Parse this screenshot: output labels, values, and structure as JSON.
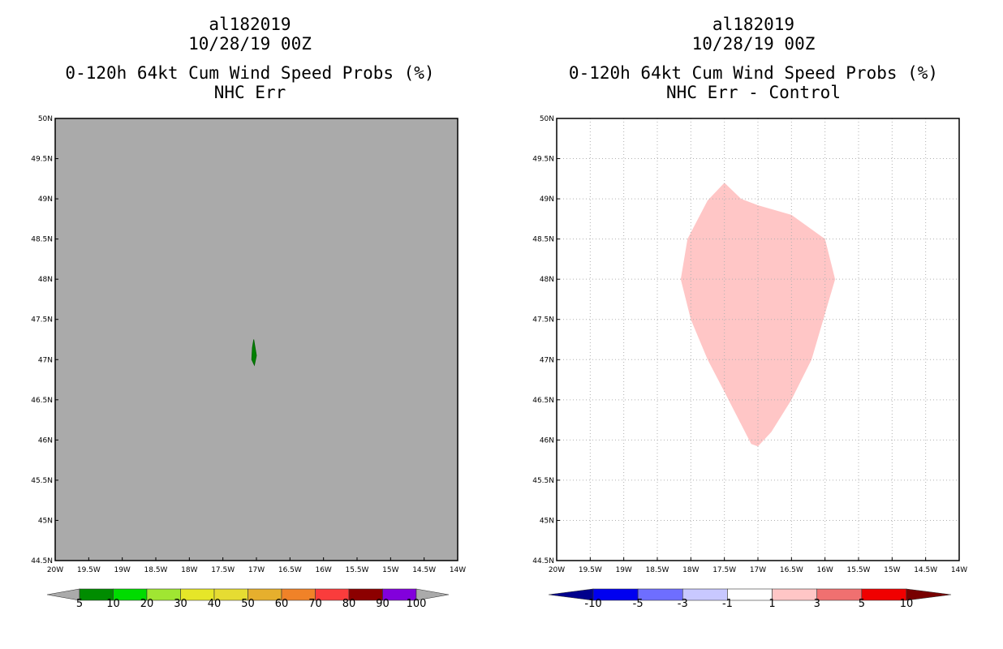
{
  "left": {
    "title_line1": "al182019",
    "title_line2": "10/28/19 00Z",
    "title_line3": "0-120h 64kt Cum Wind Speed Probs (%)",
    "title_line4": "NHC Err"
  },
  "right": {
    "title_line1": "al182019",
    "title_line2": "10/28/19 00Z",
    "title_line3": "0-120h 64kt Cum Wind Speed Probs (%)",
    "title_line4": "NHC Err - Control"
  },
  "colors": {
    "map_background_left": "#aaaaaa",
    "map_background_right": "#ffffff",
    "grid": "#b0b0b0",
    "prob_5_10": "#008000",
    "diff_1_3": "#ffc6c6"
  },
  "chart_data": [
    {
      "type": "contour-map",
      "title": "0-120h 64kt Cum Wind Speed Probs (%) NHC Err",
      "xlim": [
        -20,
        -14
      ],
      "ylim": [
        44.5,
        50
      ],
      "x_ticks": [
        "20W",
        "19.5W",
        "19W",
        "18.5W",
        "18W",
        "17.5W",
        "17W",
        "16.5W",
        "16W",
        "15.5W",
        "15W",
        "14.5W",
        "14W"
      ],
      "y_ticks": [
        "44.5N",
        "45N",
        "45.5N",
        "46N",
        "46.5N",
        "47N",
        "47.5N",
        "48N",
        "48.5N",
        "49N",
        "49.5N",
        "50N"
      ],
      "grid": false,
      "shaded_regions": [
        {
          "level": "5-10",
          "color": "#008000",
          "polygon": [
            [
              -17.04,
              47.25
            ],
            [
              -17.0,
              47.05
            ],
            [
              -17.03,
              46.93
            ],
            [
              -17.07,
              47.0
            ],
            [
              -17.06,
              47.15
            ]
          ]
        }
      ],
      "colorbar": {
        "labels": [
          "5",
          "10",
          "20",
          "30",
          "40",
          "50",
          "60",
          "70",
          "80",
          "90",
          "100"
        ],
        "colors": [
          "#aaaaaa",
          "#008c00",
          "#00dc00",
          "#a0e632",
          "#e6e628",
          "#e6dc32",
          "#e6af2d",
          "#f08228",
          "#fa3c3c",
          "#8c0000",
          "#8200dc",
          "#aaaaaa"
        ]
      }
    },
    {
      "type": "contour-map",
      "title": "0-120h 64kt Cum Wind Speed Probs (%) NHC Err - Control",
      "xlim": [
        -20,
        -14
      ],
      "ylim": [
        44.5,
        50
      ],
      "x_ticks": [
        "20W",
        "19.5W",
        "19W",
        "18.5W",
        "18W",
        "17.5W",
        "17W",
        "16.5W",
        "16W",
        "15.5W",
        "15W",
        "14.5W",
        "14W"
      ],
      "y_ticks": [
        "44.5N",
        "45N",
        "45.5N",
        "46N",
        "46.5N",
        "47N",
        "47.5N",
        "48N",
        "48.5N",
        "49N",
        "49.5N",
        "50N"
      ],
      "grid": true,
      "shaded_regions": [
        {
          "level": "1-3",
          "color": "#ffc6c6",
          "polygon": [
            [
              -17.5,
              49.2
            ],
            [
              -17.25,
              49.0
            ],
            [
              -17.0,
              48.92
            ],
            [
              -16.5,
              48.8
            ],
            [
              -16.0,
              48.5
            ],
            [
              -15.85,
              48.0
            ],
            [
              -16.2,
              47.0
            ],
            [
              -16.5,
              46.5
            ],
            [
              -16.8,
              46.1
            ],
            [
              -17.0,
              45.92
            ],
            [
              -17.1,
              45.95
            ],
            [
              -17.5,
              46.6
            ],
            [
              -17.75,
              47.0
            ],
            [
              -18.0,
              47.5
            ],
            [
              -18.15,
              48.0
            ],
            [
              -18.05,
              48.5
            ],
            [
              -17.75,
              48.98
            ]
          ]
        }
      ],
      "colorbar": {
        "labels": [
          "-10",
          "-5",
          "-3",
          "-1",
          "1",
          "3",
          "5",
          "10"
        ],
        "colors": [
          "#00008c",
          "#0000f0",
          "#6e6eff",
          "#c8c8ff",
          "#ffffff",
          "#ffc6c6",
          "#f07070",
          "#f00000",
          "#780000"
        ]
      }
    }
  ]
}
